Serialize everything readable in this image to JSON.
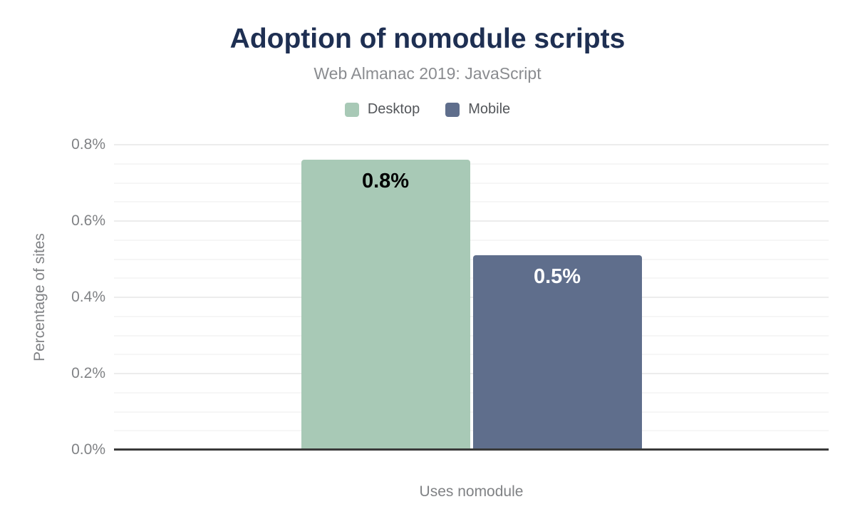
{
  "header": {
    "title": "Adoption of nomodule scripts",
    "subtitle": "Web Almanac 2019: JavaScript"
  },
  "chart_data": {
    "type": "bar",
    "title": "Adoption of nomodule scripts",
    "subtitle": "Web Almanac 2019: JavaScript",
    "categories": [
      "Uses nomodule"
    ],
    "series": [
      {
        "name": "Desktop",
        "value": 0.76,
        "label": "0.8%",
        "color": "#a8c9b6",
        "label_color": "#000000"
      },
      {
        "name": "Mobile",
        "value": 0.51,
        "label": "0.5%",
        "color": "#5f6e8c",
        "label_color": "#ffffff"
      }
    ],
    "xlabel": "Uses nomodule",
    "ylabel": "Percentage of sites",
    "ylim": [
      0,
      0.8
    ],
    "y_major_step": 0.2,
    "y_minor_step": 0.05,
    "y_ticks": [
      {
        "label": "0.0%",
        "value": 0.0
      },
      {
        "label": "0.2%",
        "value": 0.2
      },
      {
        "label": "0.4%",
        "value": 0.4
      },
      {
        "label": "0.6%",
        "value": 0.6
      },
      {
        "label": "0.8%",
        "value": 0.8
      }
    ],
    "grid": true,
    "legend_position": "top"
  },
  "colors": {
    "title": "#1e2f52",
    "subtitle": "#8a8c90",
    "axis_text": "#808285",
    "legend_text": "#53565a",
    "gridline_major": "#ececec",
    "gridline_minor": "#f6f6f6",
    "axis_line": "#3a3a3a",
    "background": "#ffffff"
  }
}
